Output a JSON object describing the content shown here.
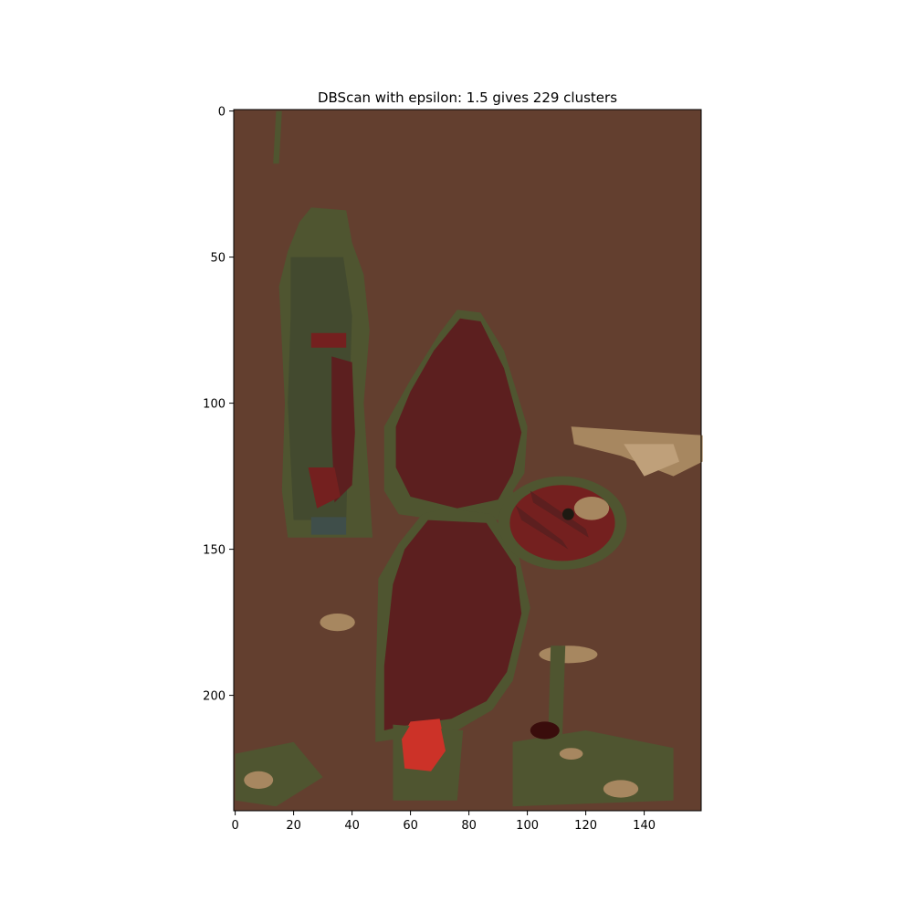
{
  "chart_data": {
    "type": "heatmap",
    "title": "DBScan with epsilon: 1.5 gives 229 clusters",
    "xlabel": "",
    "ylabel": "",
    "image_width": 160,
    "image_height": 240,
    "xlim": [
      -0.5,
      159.5
    ],
    "ylim": [
      239.5,
      -0.5
    ],
    "x_ticks": [
      0,
      20,
      40,
      60,
      80,
      100,
      120,
      140
    ],
    "y_ticks": [
      0,
      50,
      100,
      150,
      200
    ],
    "grid": false,
    "colors": {
      "background": "#633f2f",
      "olive_outline": "#4f5530",
      "dark_olive": "#434a2f",
      "dark_red": "#5c1f1f",
      "mid_red": "#74201f",
      "bright_red": "#cc3228",
      "tan": "#a78760",
      "light_tan": "#bfa07a",
      "blue_gray": "#3f4e4a",
      "near_black": "#1e1a12",
      "deep_maroon": "#3a0d0c"
    }
  }
}
